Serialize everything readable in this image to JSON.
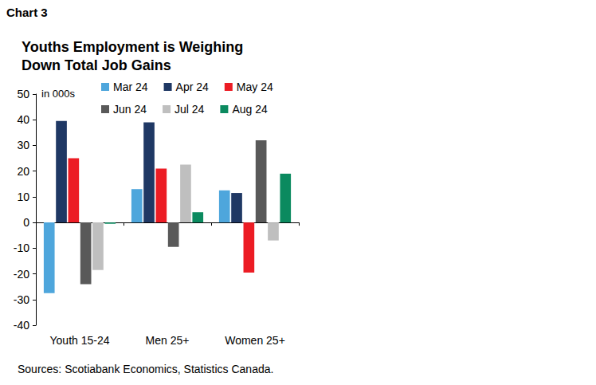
{
  "chart_data": {
    "type": "bar",
    "chart_label": "Chart 3",
    "title": "Youths Employment is Weighing Down Total Job Gains",
    "ylabel": "in 000s",
    "source": "Sources: Scotiabank Economics, Statistics Canada.",
    "categories": [
      "Youth 15-24",
      "Men 25+",
      "Women 25+"
    ],
    "series": [
      {
        "name": "Mar 24",
        "color": "#4ea6dc",
        "values": [
          -27.5,
          13,
          12.5
        ]
      },
      {
        "name": "Apr 24",
        "color": "#1f3864",
        "values": [
          39.5,
          39,
          11.5
        ]
      },
      {
        "name": "May 24",
        "color": "#ec1c24",
        "values": [
          25,
          21,
          -19.5
        ]
      },
      {
        "name": "Jun 24",
        "color": "#595959",
        "values": [
          -24,
          -9.5,
          32
        ]
      },
      {
        "name": "Jul 24",
        "color": "#bfbfbf",
        "values": [
          -18.5,
          22.5,
          -7
        ]
      },
      {
        "name": "Aug 24",
        "color": "#0b8a5f",
        "values": [
          -0.5,
          4,
          19
        ]
      }
    ],
    "ylim": [
      -40,
      50
    ],
    "yticks": [
      -40,
      -30,
      -20,
      -10,
      0,
      10,
      20,
      30,
      40,
      50
    ],
    "grid": false,
    "legend": "top"
  }
}
